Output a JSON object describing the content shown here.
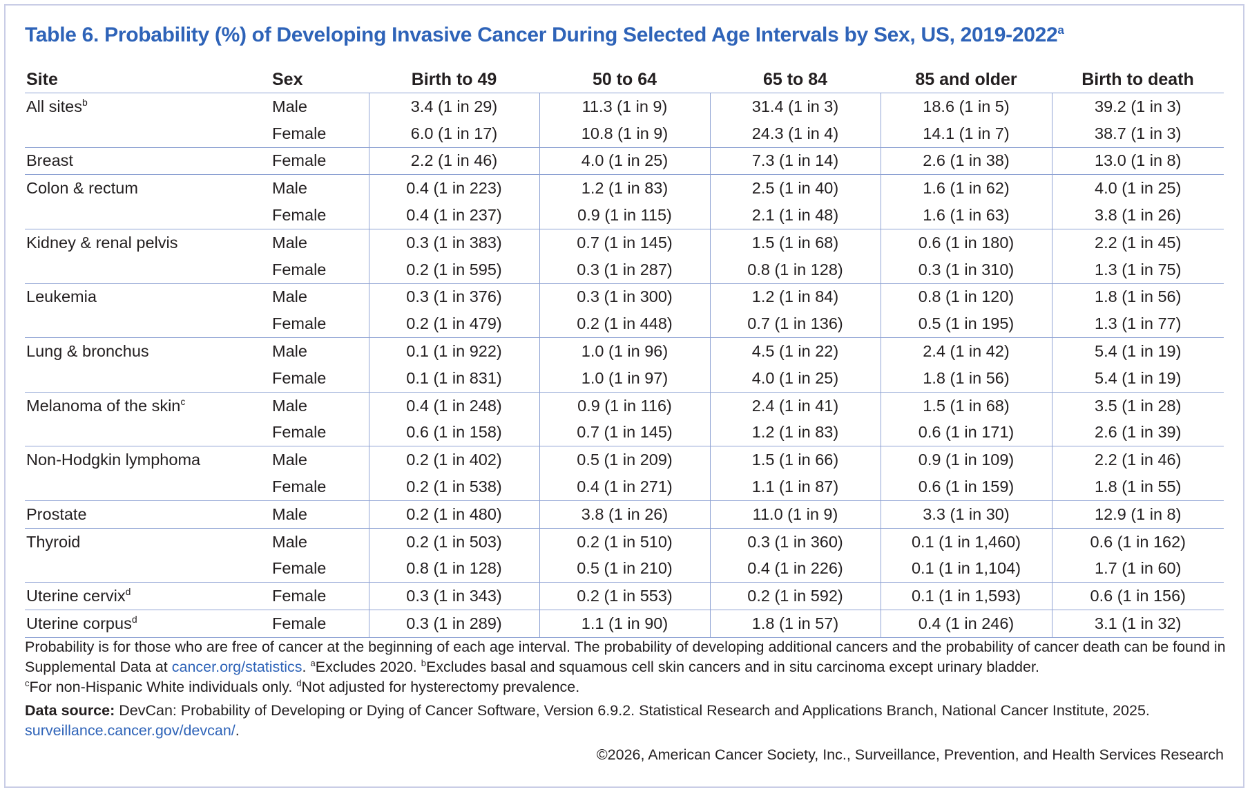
{
  "title": {
    "text": "Table 6. Probability (%) of Developing Invasive Cancer During Selected Age Intervals by Sex, US, 2019-2022",
    "sup": "a"
  },
  "columns": [
    "Site",
    "Sex",
    "Birth to 49",
    "50 to 64",
    "65 to 84",
    "85 and older",
    "Birth to death"
  ],
  "groups": [
    {
      "site": "All sites",
      "sup": "b",
      "rows": [
        {
          "sex": "Male",
          "values": [
            "3.4 (1 in 29)",
            "11.3 (1 in 9)",
            "31.4 (1 in 3)",
            "18.6 (1 in 5)",
            "39.2 (1 in 3)"
          ]
        },
        {
          "sex": "Female",
          "values": [
            "6.0 (1 in 17)",
            "10.8 (1 in 9)",
            "24.3 (1 in 4)",
            "14.1 (1 in 7)",
            "38.7 (1 in 3)"
          ]
        }
      ]
    },
    {
      "site": "Breast",
      "sup": "",
      "rows": [
        {
          "sex": "Female",
          "values": [
            "2.2 (1 in 46)",
            "4.0 (1 in 25)",
            "7.3 (1 in 14)",
            "2.6 (1 in 38)",
            "13.0 (1 in 8)"
          ]
        }
      ]
    },
    {
      "site": "Colon & rectum",
      "sup": "",
      "rows": [
        {
          "sex": "Male",
          "values": [
            "0.4 (1 in 223)",
            "1.2 (1 in 83)",
            "2.5 (1 in 40)",
            "1.6 (1 in 62)",
            "4.0 (1 in 25)"
          ]
        },
        {
          "sex": "Female",
          "values": [
            "0.4 (1 in 237)",
            "0.9 (1 in 115)",
            "2.1 (1 in 48)",
            "1.6 (1 in 63)",
            "3.8 (1 in 26)"
          ]
        }
      ]
    },
    {
      "site": "Kidney & renal pelvis",
      "sup": "",
      "rows": [
        {
          "sex": "Male",
          "values": [
            "0.3 (1 in 383)",
            "0.7 (1 in 145)",
            "1.5 (1 in 68)",
            "0.6 (1 in 180)",
            "2.2 (1 in 45)"
          ]
        },
        {
          "sex": "Female",
          "values": [
            "0.2 (1 in 595)",
            "0.3 (1 in 287)",
            "0.8 (1 in 128)",
            "0.3 (1 in 310)",
            "1.3 (1 in 75)"
          ]
        }
      ]
    },
    {
      "site": "Leukemia",
      "sup": "",
      "rows": [
        {
          "sex": "Male",
          "values": [
            "0.3 (1 in 376)",
            "0.3 (1 in 300)",
            "1.2 (1 in 84)",
            "0.8 (1 in 120)",
            "1.8 (1 in 56)"
          ]
        },
        {
          "sex": "Female",
          "values": [
            "0.2 (1 in 479)",
            "0.2 (1 in 448)",
            "0.7 (1 in 136)",
            "0.5 (1 in 195)",
            "1.3 (1 in 77)"
          ]
        }
      ]
    },
    {
      "site": "Lung & bronchus",
      "sup": "",
      "rows": [
        {
          "sex": "Male",
          "values": [
            "0.1 (1 in 922)",
            "1.0 (1 in 96)",
            "4.5 (1 in 22)",
            "2.4 (1 in 42)",
            "5.4 (1 in 19)"
          ]
        },
        {
          "sex": "Female",
          "values": [
            "0.1 (1 in 831)",
            "1.0 (1 in 97)",
            "4.0 (1 in 25)",
            "1.8 (1 in 56)",
            "5.4 (1 in 19)"
          ]
        }
      ]
    },
    {
      "site": "Melanoma of the skin",
      "sup": "c",
      "rows": [
        {
          "sex": "Male",
          "values": [
            "0.4 (1 in 248)",
            "0.9 (1 in 116)",
            "2.4 (1 in 41)",
            "1.5 (1 in 68)",
            "3.5 (1 in 28)"
          ]
        },
        {
          "sex": "Female",
          "values": [
            "0.6 (1 in 158)",
            "0.7 (1 in 145)",
            "1.2 (1 in 83)",
            "0.6 (1 in 171)",
            "2.6 (1 in 39)"
          ]
        }
      ]
    },
    {
      "site": "Non-Hodgkin lymphoma",
      "sup": "",
      "rows": [
        {
          "sex": "Male",
          "values": [
            "0.2 (1 in 402)",
            "0.5 (1 in 209)",
            "1.5 (1 in 66)",
            "0.9 (1 in 109)",
            "2.2 (1 in 46)"
          ]
        },
        {
          "sex": "Female",
          "values": [
            "0.2 (1 in 538)",
            "0.4 (1 in 271)",
            "1.1 (1 in 87)",
            "0.6 (1 in 159)",
            "1.8 (1 in 55)"
          ]
        }
      ]
    },
    {
      "site": "Prostate",
      "sup": "",
      "rows": [
        {
          "sex": "Male",
          "values": [
            "0.2 (1 in 480)",
            "3.8 (1 in 26)",
            "11.0 (1 in 9)",
            "3.3 (1 in 30)",
            "12.9 (1 in 8)"
          ]
        }
      ]
    },
    {
      "site": "Thyroid",
      "sup": "",
      "rows": [
        {
          "sex": "Male",
          "values": [
            "0.2 (1 in 503)",
            "0.2 (1 in 510)",
            "0.3 (1 in 360)",
            "0.1 (1 in 1,460)",
            "0.6 (1 in 162)"
          ]
        },
        {
          "sex": "Female",
          "values": [
            "0.8 (1 in 128)",
            "0.5 (1 in 210)",
            "0.4 (1 in 226)",
            "0.1 (1 in 1,104)",
            "1.7 (1 in 60)"
          ]
        }
      ]
    },
    {
      "site": "Uterine cervix",
      "sup": "d",
      "rows": [
        {
          "sex": "Female",
          "values": [
            "0.3 (1 in 343)",
            "0.2 (1 in 553)",
            "0.2 (1 in 592)",
            "0.1 (1 in 1,593)",
            "0.6 (1 in 156)"
          ]
        }
      ]
    },
    {
      "site": "Uterine corpus",
      "sup": "d",
      "rows": [
        {
          "sex": "Female",
          "values": [
            "0.3 (1 in 289)",
            "1.1 (1 in 90)",
            "1.8 (1 in 57)",
            "0.4 (1 in 246)",
            "3.1 (1 in 32)"
          ]
        }
      ]
    }
  ],
  "notes": {
    "line1": "Probability is for those who are free of cancer at the beginning of each age interval. The probability of developing additional cancers and the probability of cancer death can be found in Supplemental Data at ",
    "link1": "cancer.org/statistics",
    "after_link1": ". ",
    "note_a_sup": "a",
    "note_a": "Excludes 2020. ",
    "note_b_sup": "b",
    "note_b": "Excludes basal and squamous cell skin cancers and in situ carcinoma except urinary bladder. ",
    "note_c_sup": "c",
    "note_c": "For non-Hispanic White individuals only. ",
    "note_d_sup": "d",
    "note_d": "Not adjusted for hysterectomy prevalence.",
    "source_label": "Data source:",
    "source_text": " DevCan: Probability of Developing or Dying of Cancer Software, Version 6.9.2. Statistical Research and Applications Branch, National Cancer Institute, 2025. ",
    "source_link": "surveillance.cancer.gov/devcan/",
    "source_end": "."
  },
  "copyright": "©2026, American Cancer Society, Inc., Surveillance, Prevention, and Health Services Research"
}
